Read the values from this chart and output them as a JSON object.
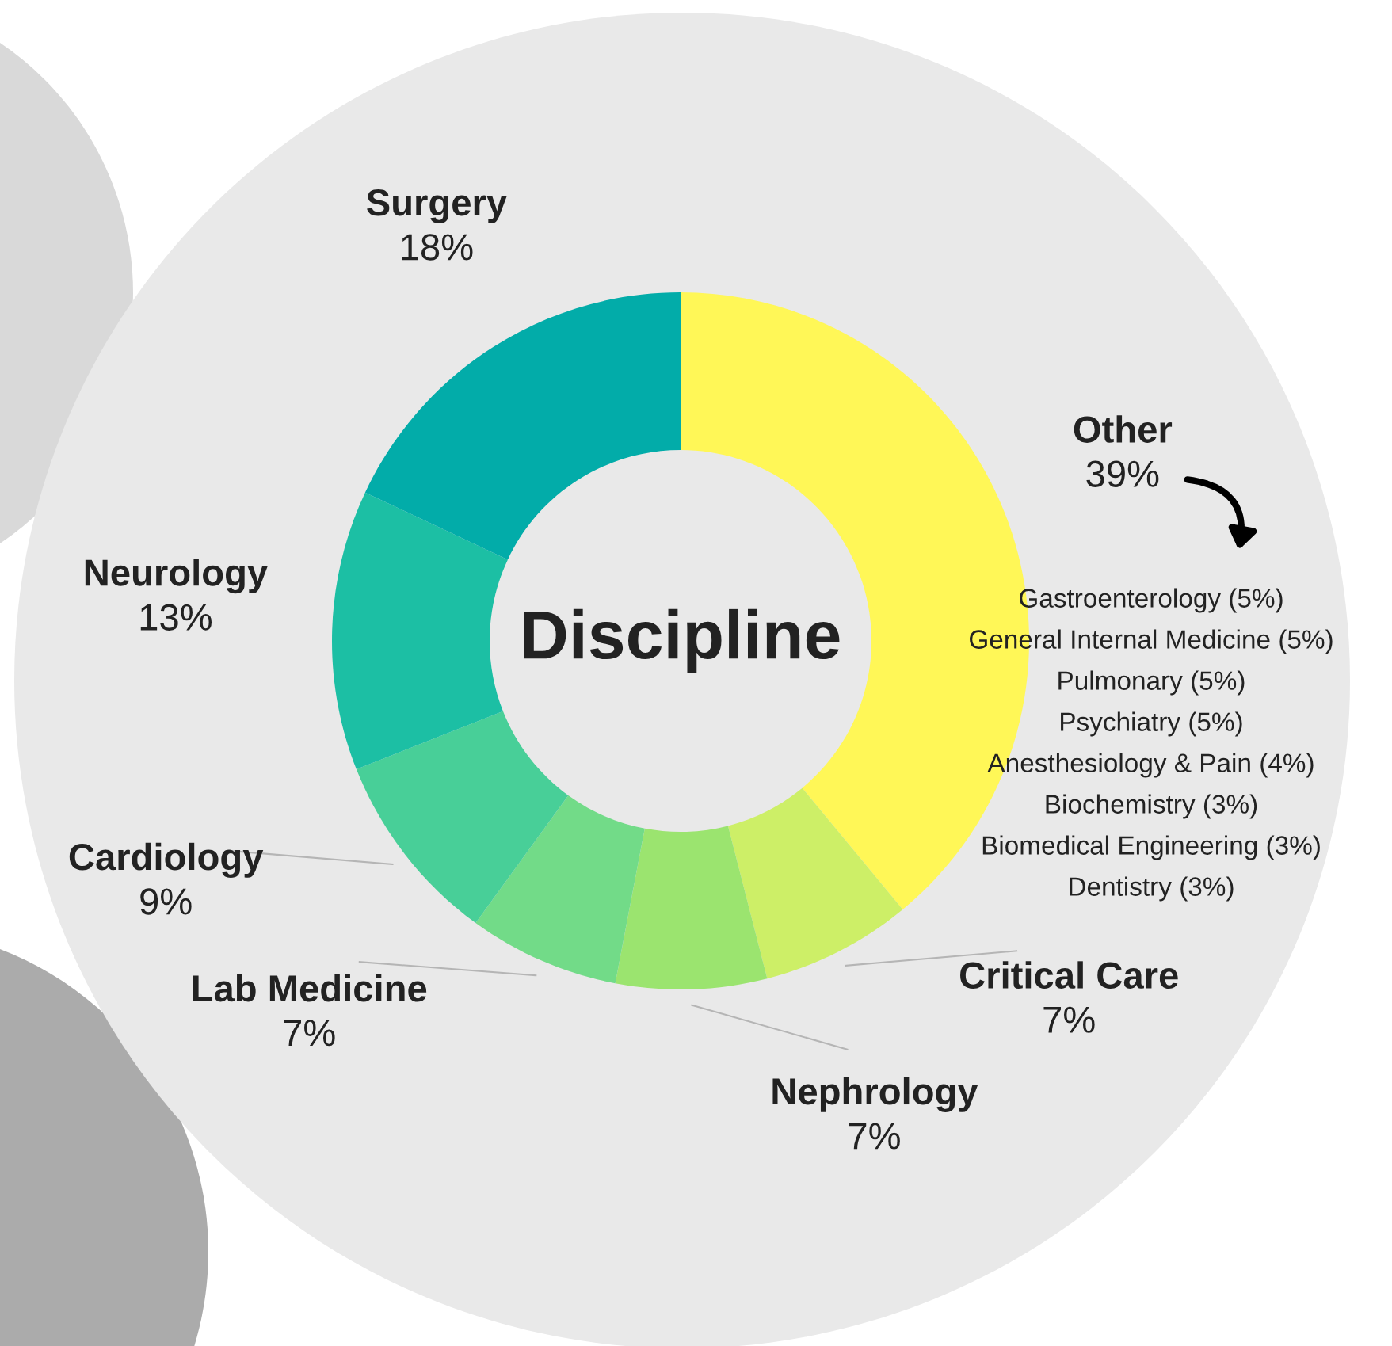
{
  "chart_data": {
    "type": "donut",
    "title": "Discipline",
    "categories": [
      "Other",
      "Critical Care",
      "Nephrology",
      "Lab Medicine",
      "Cardiology",
      "Neurology",
      "Surgery"
    ],
    "values": [
      39,
      7,
      7,
      7,
      9,
      13,
      18
    ],
    "colors": [
      "#fff757",
      "#cdef67",
      "#9be46f",
      "#72db88",
      "#48cf98",
      "#1cbfa4",
      "#02aca9"
    ],
    "value_labels": [
      "39%",
      "7%",
      "7%",
      "7%",
      "9%",
      "13%",
      "18%"
    ],
    "annotations": [
      "Gastroenterology (5%)",
      "General Internal Medicine (5%)",
      "Pulmonary (5%)",
      "Psychiatry (5%)",
      "Anesthesiology & Pain (4%)",
      "Biochemistry (3%)",
      "Biomedical Engineering (3%)",
      "Dentistry (3%)"
    ]
  }
}
